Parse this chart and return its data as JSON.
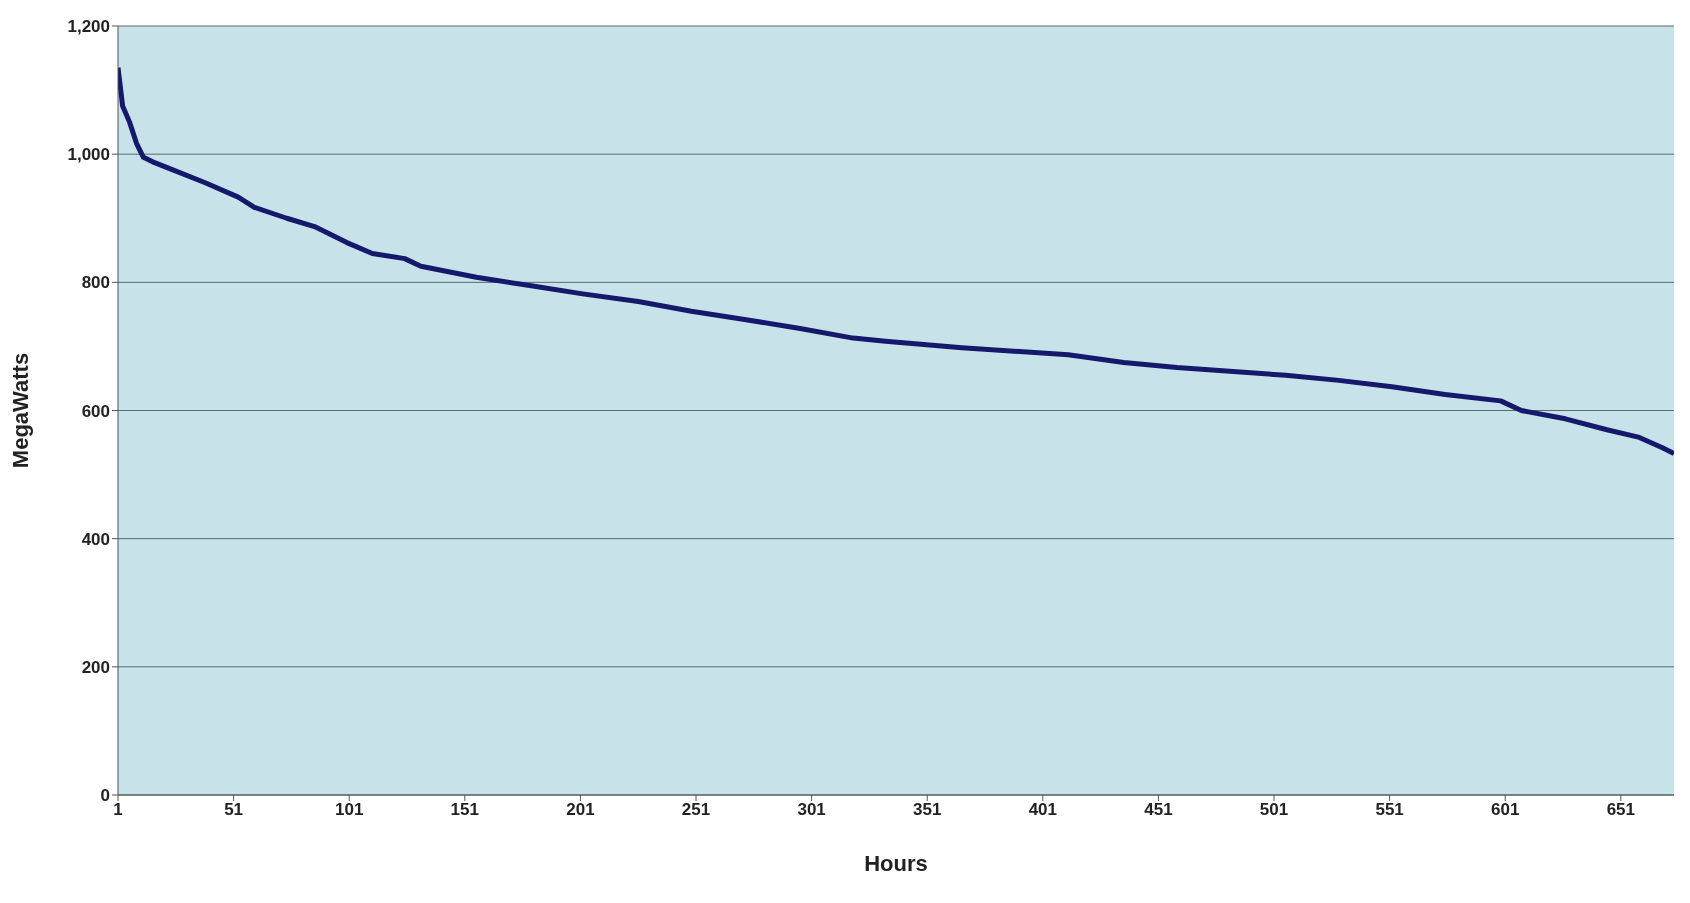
{
  "chart_data": {
    "type": "line",
    "xlabel": "Hours",
    "ylabel": "MegaWatts",
    "x": [
      1,
      3,
      6,
      9,
      12,
      16,
      25,
      39,
      53,
      60,
      74,
      86,
      100,
      111,
      125,
      132,
      156,
      179,
      202,
      226,
      249,
      272,
      296,
      319,
      333,
      366,
      412,
      436,
      459,
      506,
      529,
      552,
      575,
      599,
      608,
      627,
      645,
      659,
      669,
      674
    ],
    "series": [
      {
        "color": "#14196b",
        "values": [
          1135,
          1075,
          1050,
          1017,
          995,
          988,
          975,
          955,
          933,
          917,
          900,
          887,
          862,
          845,
          837,
          825,
          808,
          795,
          782,
          770,
          755,
          742,
          728,
          713,
          708,
          698,
          687,
          675,
          667,
          655,
          647,
          637,
          625,
          615,
          600,
          587,
          570,
          558,
          542,
          533
        ]
      }
    ],
    "xlim": [
      1,
      674
    ],
    "xticks": [
      1,
      51,
      101,
      151,
      201,
      251,
      301,
      351,
      401,
      451,
      501,
      551,
      601,
      651
    ],
    "ylim": [
      0,
      1200
    ],
    "yticks": [
      0,
      200,
      400,
      600,
      800,
      {
        "value": 1000,
        "label": "1,000"
      },
      {
        "value": 1200,
        "label": "1,200"
      }
    ],
    "grid": "y",
    "legend": false,
    "marker": "none",
    "line_style": "solid"
  }
}
